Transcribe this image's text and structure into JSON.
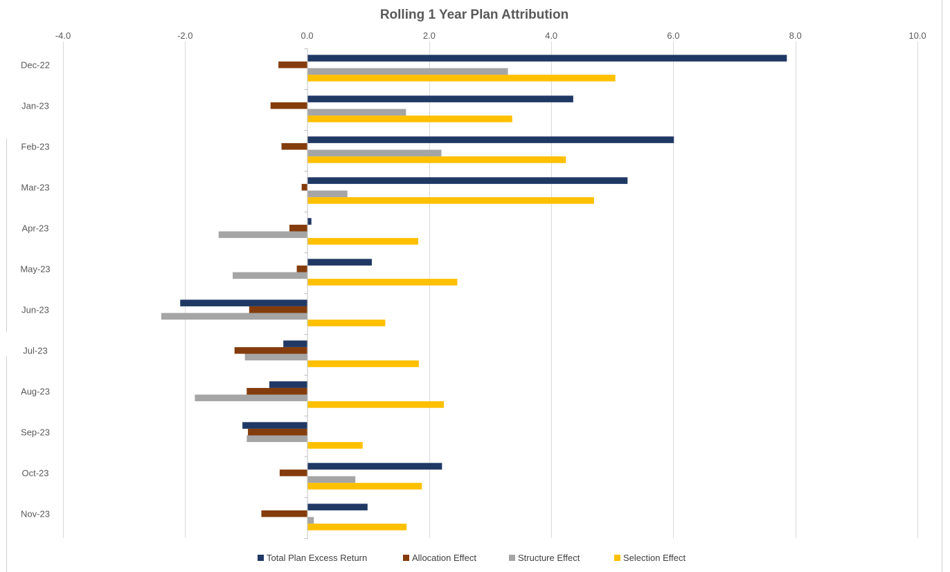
{
  "chart_data": {
    "type": "bar",
    "orientation": "horizontal",
    "title": "Rolling 1 Year Plan Attribution",
    "xlabel": "",
    "ylabel": "",
    "xlim": [
      -4.0,
      10.0
    ],
    "x_ticks": [
      "-4.0",
      "-2.0",
      "0.0",
      "2.0",
      "4.0",
      "6.0",
      "8.0",
      "10.0"
    ],
    "x_tick_values": [
      -4,
      -2,
      0,
      2,
      4,
      6,
      8,
      10
    ],
    "grid": "vertical",
    "legend_position": "bottom",
    "categories": [
      "Dec-22",
      "Jan-23",
      "Feb-23",
      "Mar-23",
      "Apr-23",
      "May-23",
      "Jun-23",
      "Jul-23",
      "Aug-23",
      "Sep-23",
      "Oct-23",
      "Nov-23"
    ],
    "series": [
      {
        "name": "Total Plan Excess Return",
        "color": "#203864",
        "values": [
          7.86,
          4.36,
          6.01,
          5.25,
          0.07,
          1.06,
          -2.08,
          -0.39,
          -0.62,
          -1.06,
          2.21,
          0.99
        ]
      },
      {
        "name": "Allocation Effect",
        "color": "#843C0C",
        "values": [
          -0.47,
          -0.6,
          -0.42,
          -0.09,
          -0.29,
          -0.17,
          -0.95,
          -1.19,
          -0.99,
          -0.97,
          -0.45,
          -0.75
        ]
      },
      {
        "name": "Structure Effect",
        "color": "#A5A5A5",
        "values": [
          3.29,
          1.62,
          2.2,
          0.66,
          -1.45,
          -1.22,
          -2.39,
          -1.02,
          -1.84,
          -0.99,
          0.79,
          0.11
        ]
      },
      {
        "name": "Selection Effect",
        "color": "#FFC000",
        "values": [
          5.05,
          3.36,
          4.24,
          4.7,
          1.82,
          2.46,
          1.28,
          1.83,
          2.24,
          0.91,
          1.88,
          1.63
        ]
      }
    ]
  }
}
